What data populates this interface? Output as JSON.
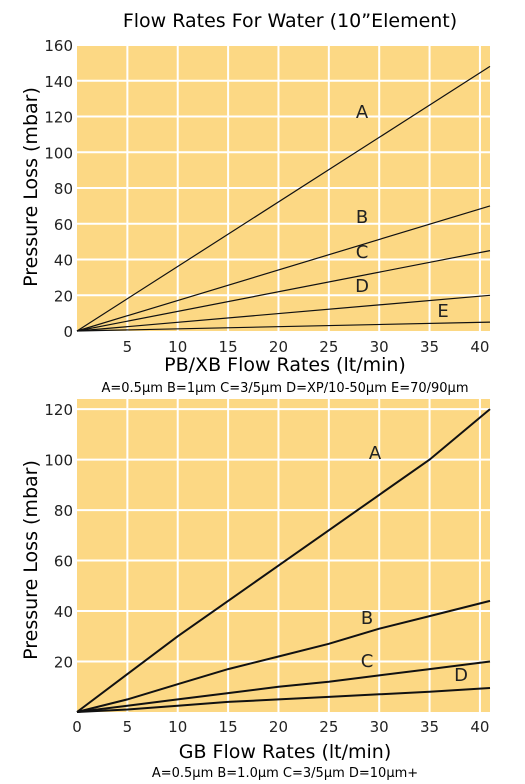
{
  "page_title": "Flow Rates For Water (10”Element)",
  "colors": {
    "plot_background": "#FCD884",
    "grid": "#FFFFFF",
    "line": "#111111",
    "text": "#222222"
  },
  "chart_data": [
    {
      "type": "line",
      "title": "Flow Rates For Water (10”Element)",
      "xlabel": "PB/XB Flow Rates (lt/min)",
      "ylabel": "Pressure Loss (mbar)",
      "caption": "A=0.5µm B=1µm C=3/5µm D=XP/10-50µm E=70/90µm",
      "xlim": [
        0,
        41
      ],
      "ylim": [
        0,
        160
      ],
      "xticks": [
        5,
        10,
        15,
        20,
        25,
        30,
        35,
        40
      ],
      "yticks": [
        0,
        20,
        40,
        60,
        80,
        100,
        120,
        140,
        160
      ],
      "grid": true,
      "x": [
        0,
        41
      ],
      "series": [
        {
          "name": "A",
          "values": [
            0,
            148
          ]
        },
        {
          "name": "B",
          "values": [
            0,
            70
          ]
        },
        {
          "name": "C",
          "values": [
            0,
            45
          ]
        },
        {
          "name": "D",
          "values": [
            0,
            20
          ]
        },
        {
          "name": "E",
          "values": [
            0,
            5
          ]
        }
      ]
    },
    {
      "type": "line",
      "title": "",
      "xlabel": "GB Flow Rates (lt/min)",
      "ylabel": "Pressure Loss (mbar)",
      "caption": "A=0.5µm B=1.0µm C=3/5µm D=10µm+",
      "xlim": [
        0,
        41
      ],
      "ylim": [
        0,
        124
      ],
      "xticks": [
        0,
        5,
        10,
        15,
        20,
        25,
        30,
        35,
        40
      ],
      "yticks": [
        20,
        40,
        60,
        80,
        100,
        120
      ],
      "grid": true,
      "x": [
        0,
        5,
        10,
        15,
        20,
        25,
        30,
        35,
        41
      ],
      "series": [
        {
          "name": "A",
          "values": [
            0,
            15,
            30,
            44,
            58,
            72,
            86,
            100,
            120
          ]
        },
        {
          "name": "B",
          "values": [
            0,
            5,
            11,
            17,
            22,
            27,
            33,
            38,
            44
          ]
        },
        {
          "name": "C",
          "values": [
            0,
            2.5,
            5,
            7.5,
            10,
            12,
            14.5,
            17,
            20
          ]
        },
        {
          "name": "D",
          "values": [
            0,
            1,
            2.5,
            4,
            5,
            6,
            7,
            8,
            9.5
          ]
        }
      ]
    }
  ]
}
